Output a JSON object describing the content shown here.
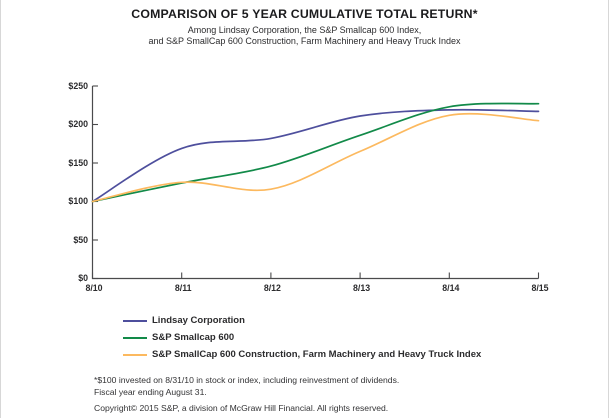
{
  "header": {
    "title": "COMPARISON OF 5 YEAR CUMULATIVE TOTAL RETURN*",
    "subtitle_line1": "Among Lindsay Corporation, the S&P Smallcap 600 Index,",
    "subtitle_line2": "and S&P SmallCap 600 Construction, Farm Machinery and Heavy Truck Index"
  },
  "chart_data": {
    "type": "line",
    "categories": [
      "8/10",
      "8/11",
      "8/12",
      "8/13",
      "8/14",
      "8/15"
    ],
    "series": [
      {
        "name": "Lindsay Corporation",
        "color": "#4e4f9d",
        "values": [
          100,
          169,
          182,
          211,
          219,
          217
        ]
      },
      {
        "name": "S&P Smallcap 600",
        "color": "#128a49",
        "values": [
          100,
          124,
          146,
          186,
          223,
          227
        ]
      },
      {
        "name": "S&P SmallCap 600 Construction, Farm Machinery and Heavy Truck Index",
        "color": "#fcb95f",
        "values": [
          100,
          125,
          116,
          165,
          212,
          205
        ]
      }
    ],
    "title": "COMPARISON OF 5 YEAR CUMULATIVE TOTAL RETURN*",
    "xlabel": "",
    "ylabel": "",
    "ylim": [
      0,
      250
    ],
    "y_tick_labels": [
      "$0",
      "$50",
      "$100",
      "$150",
      "$200",
      "$250"
    ],
    "y_tick_values": [
      0,
      50,
      100,
      150,
      200,
      250
    ],
    "grid": false,
    "legend_position": "below",
    "axis_color": "#4a4a4c",
    "note": "$100 invested on 8/31/10, fiscal years ending August 31"
  },
  "footnotes": {
    "line1": "*$100 invested on 8/31/10 in stock or index, including reinvestment of dividends.",
    "line2": "Fiscal year ending August 31.",
    "copyright": "Copyright© 2015 S&P, a division of McGraw Hill Financial. All rights reserved."
  }
}
